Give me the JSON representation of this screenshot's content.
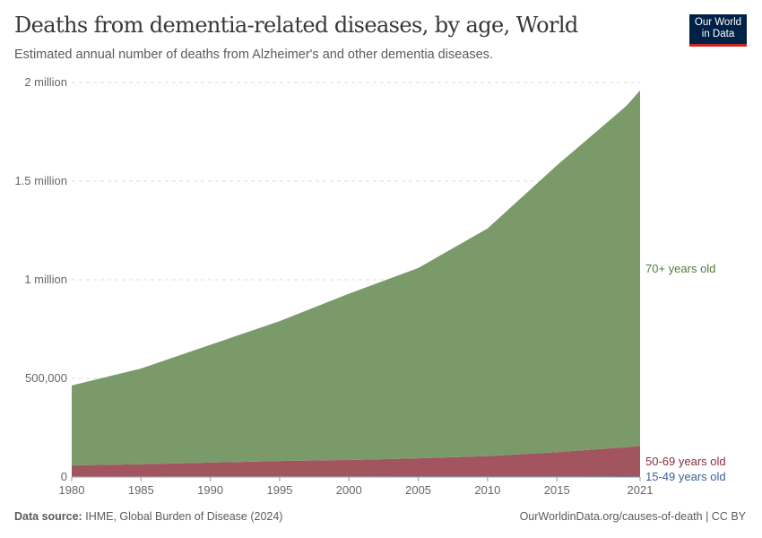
{
  "header": {
    "title": "Deaths from dementia-related diseases, by age, World",
    "subtitle": "Estimated annual number of deaths from Alzheimer's and other dementia diseases.",
    "logo": "Our World in Data"
  },
  "footer": {
    "source_label": "Data source:",
    "source": "IHME, Global Burden of Disease (2024)",
    "url": "OurWorldinData.org/causes-of-death | CC BY"
  },
  "chart_data": {
    "type": "area",
    "stacked": true,
    "grid": true,
    "x": [
      1980,
      1985,
      1990,
      1995,
      2000,
      2005,
      2010,
      2015,
      2020,
      2021
    ],
    "xticks": [
      "1980",
      "1985",
      "1990",
      "1995",
      "2000",
      "2005",
      "2010",
      "2015",
      "2021"
    ],
    "yticks": [
      "0",
      "500,000",
      "1 million",
      "1.5 million",
      "2 million"
    ],
    "ylim": [
      0,
      2000000
    ],
    "legend": "right-inline",
    "series": [
      {
        "name": "15-49 years old",
        "color": "#4c6a9c",
        "values": [
          3000,
          3000,
          3200,
          3400,
          3600,
          3800,
          4000,
          4200,
          4400,
          4500
        ]
      },
      {
        "name": "50-69 years old",
        "color": "#a2545f",
        "values": [
          56000,
          62000,
          70000,
          78000,
          83000,
          91000,
          102000,
          122000,
          147000,
          153000
        ]
      },
      {
        "name": "70+ years old",
        "color": "#7a9a6a",
        "values": [
          405000,
          485000,
          597000,
          709000,
          843000,
          965000,
          1154000,
          1454000,
          1729000,
          1802000
        ]
      }
    ]
  }
}
